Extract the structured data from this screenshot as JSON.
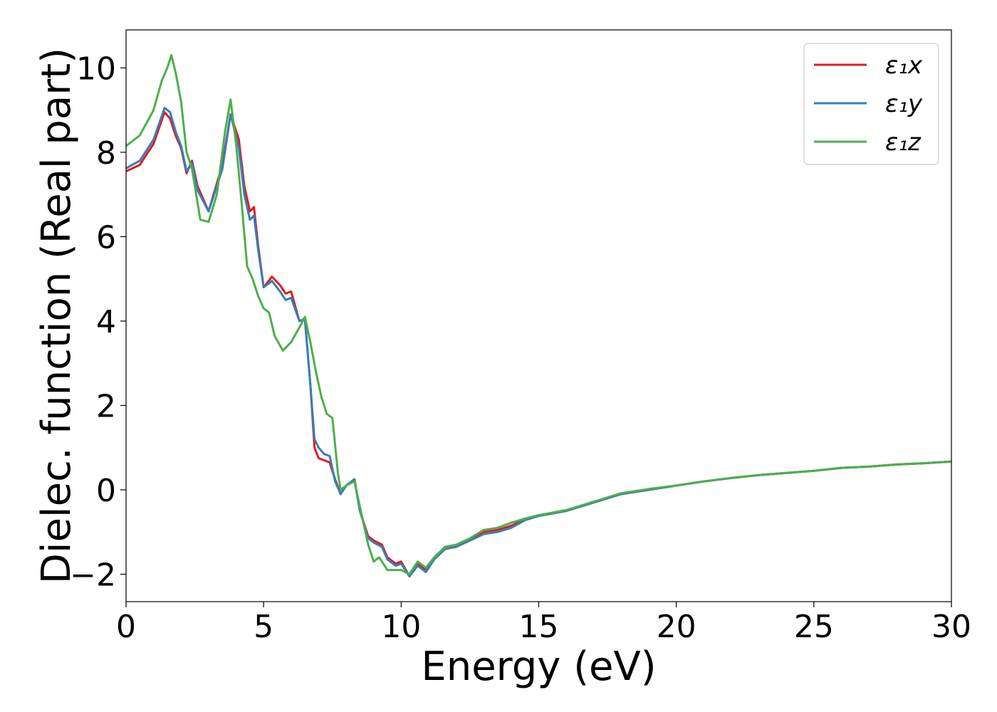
{
  "chart_data": {
    "type": "line",
    "title": "",
    "xlabel": "Energy (eV)",
    "ylabel": "Dielec. function (Real part)",
    "xlim": [
      0,
      30
    ],
    "ylim": [
      -2.65,
      10.9
    ],
    "xticks": [
      0,
      5,
      10,
      15,
      20,
      25,
      30
    ],
    "yticks": [
      -2,
      0,
      2,
      4,
      6,
      8,
      10
    ],
    "ytick_labels": [
      "−2",
      "0",
      "2",
      "4",
      "6",
      "8",
      "10"
    ],
    "grid": false,
    "legend_position": "top-right",
    "series": [
      {
        "name": "ε₁x",
        "color": "#e41a1c",
        "points": [
          [
            0,
            7.55
          ],
          [
            0.5,
            7.7
          ],
          [
            1.0,
            8.2
          ],
          [
            1.4,
            8.95
          ],
          [
            1.6,
            8.8
          ],
          [
            1.8,
            8.4
          ],
          [
            2.0,
            8.1
          ],
          [
            2.2,
            7.5
          ],
          [
            2.4,
            7.8
          ],
          [
            2.6,
            7.2
          ],
          [
            3.0,
            6.6
          ],
          [
            3.5,
            7.7
          ],
          [
            3.8,
            8.9
          ],
          [
            4.1,
            8.3
          ],
          [
            4.3,
            7.2
          ],
          [
            4.5,
            6.6
          ],
          [
            4.65,
            6.7
          ],
          [
            4.8,
            5.8
          ],
          [
            5.0,
            4.8
          ],
          [
            5.3,
            5.05
          ],
          [
            5.6,
            4.85
          ],
          [
            5.8,
            4.65
          ],
          [
            6.0,
            4.7
          ],
          [
            6.3,
            4.0
          ],
          [
            6.5,
            4.05
          ],
          [
            6.7,
            2.5
          ],
          [
            6.85,
            1.0
          ],
          [
            7.0,
            0.75
          ],
          [
            7.2,
            0.7
          ],
          [
            7.4,
            0.65
          ],
          [
            7.6,
            0.25
          ],
          [
            7.8,
            -0.1
          ],
          [
            8.0,
            0.1
          ],
          [
            8.3,
            0.25
          ],
          [
            8.5,
            -0.5
          ],
          [
            8.8,
            -1.1
          ],
          [
            9.0,
            -1.2
          ],
          [
            9.3,
            -1.3
          ],
          [
            9.5,
            -1.6
          ],
          [
            9.8,
            -1.75
          ],
          [
            10.0,
            -1.7
          ],
          [
            10.3,
            -2.05
          ],
          [
            10.6,
            -1.75
          ],
          [
            10.9,
            -1.9
          ],
          [
            11.2,
            -1.65
          ],
          [
            11.6,
            -1.4
          ],
          [
            12.0,
            -1.35
          ],
          [
            12.5,
            -1.2
          ],
          [
            13.0,
            -1.0
          ],
          [
            13.5,
            -0.95
          ],
          [
            14.0,
            -0.85
          ],
          [
            14.5,
            -0.7
          ],
          [
            15.0,
            -0.6
          ],
          [
            16.0,
            -0.5
          ],
          [
            17.0,
            -0.3
          ],
          [
            18.0,
            -0.1
          ],
          [
            19.0,
            0.0
          ],
          [
            20.0,
            0.1
          ],
          [
            21.0,
            0.2
          ],
          [
            22.0,
            0.28
          ],
          [
            23.0,
            0.35
          ],
          [
            24.0,
            0.4
          ],
          [
            25.0,
            0.45
          ],
          [
            26.0,
            0.52
          ],
          [
            27.0,
            0.55
          ],
          [
            28.0,
            0.6
          ],
          [
            29.0,
            0.63
          ],
          [
            30.0,
            0.67
          ]
        ]
      },
      {
        "name": "ε₁y",
        "color": "#377eb8",
        "points": [
          [
            0,
            7.62
          ],
          [
            0.5,
            7.8
          ],
          [
            1.0,
            8.3
          ],
          [
            1.4,
            9.05
          ],
          [
            1.6,
            8.95
          ],
          [
            1.8,
            8.5
          ],
          [
            2.0,
            8.15
          ],
          [
            2.2,
            7.55
          ],
          [
            2.4,
            7.75
          ],
          [
            2.6,
            7.1
          ],
          [
            3.0,
            6.6
          ],
          [
            3.5,
            7.6
          ],
          [
            3.8,
            8.9
          ],
          [
            4.1,
            8.1
          ],
          [
            4.3,
            7.0
          ],
          [
            4.5,
            6.4
          ],
          [
            4.65,
            6.5
          ],
          [
            4.8,
            5.7
          ],
          [
            5.0,
            4.8
          ],
          [
            5.3,
            4.95
          ],
          [
            5.6,
            4.7
          ],
          [
            5.8,
            4.5
          ],
          [
            6.0,
            4.55
          ],
          [
            6.3,
            4.0
          ],
          [
            6.5,
            4.05
          ],
          [
            6.7,
            2.5
          ],
          [
            6.85,
            1.2
          ],
          [
            7.0,
            1.0
          ],
          [
            7.2,
            0.85
          ],
          [
            7.4,
            0.8
          ],
          [
            7.6,
            0.2
          ],
          [
            7.8,
            -0.1
          ],
          [
            8.0,
            0.1
          ],
          [
            8.3,
            0.25
          ],
          [
            8.5,
            -0.5
          ],
          [
            8.8,
            -1.15
          ],
          [
            9.0,
            -1.25
          ],
          [
            9.3,
            -1.35
          ],
          [
            9.5,
            -1.65
          ],
          [
            9.8,
            -1.8
          ],
          [
            10.0,
            -1.75
          ],
          [
            10.3,
            -2.05
          ],
          [
            10.6,
            -1.8
          ],
          [
            10.9,
            -1.95
          ],
          [
            11.2,
            -1.65
          ],
          [
            11.6,
            -1.4
          ],
          [
            12.0,
            -1.35
          ],
          [
            12.5,
            -1.2
          ],
          [
            13.0,
            -1.05
          ],
          [
            13.5,
            -1.0
          ],
          [
            14.0,
            -0.9
          ],
          [
            14.5,
            -0.72
          ],
          [
            15.0,
            -0.62
          ],
          [
            16.0,
            -0.5
          ],
          [
            17.0,
            -0.3
          ],
          [
            18.0,
            -0.1
          ],
          [
            19.0,
            0.0
          ],
          [
            20.0,
            0.1
          ],
          [
            21.0,
            0.2
          ],
          [
            22.0,
            0.28
          ],
          [
            23.0,
            0.35
          ],
          [
            24.0,
            0.4
          ],
          [
            25.0,
            0.45
          ],
          [
            26.0,
            0.52
          ],
          [
            27.0,
            0.55
          ],
          [
            28.0,
            0.6
          ],
          [
            29.0,
            0.63
          ],
          [
            30.0,
            0.67
          ]
        ]
      },
      {
        "name": "ε₁z",
        "color": "#4daf4a",
        "points": [
          [
            0,
            8.15
          ],
          [
            0.5,
            8.4
          ],
          [
            1.0,
            9.0
          ],
          [
            1.3,
            9.7
          ],
          [
            1.5,
            10.0
          ],
          [
            1.65,
            10.3
          ],
          [
            1.8,
            9.9
          ],
          [
            2.0,
            9.2
          ],
          [
            2.2,
            8.0
          ],
          [
            2.4,
            7.6
          ],
          [
            2.7,
            6.4
          ],
          [
            3.0,
            6.35
          ],
          [
            3.3,
            7.0
          ],
          [
            3.6,
            8.5
          ],
          [
            3.8,
            9.25
          ],
          [
            4.0,
            8.2
          ],
          [
            4.2,
            6.8
          ],
          [
            4.4,
            5.3
          ],
          [
            4.6,
            5.0
          ],
          [
            4.8,
            4.6
          ],
          [
            5.0,
            4.3
          ],
          [
            5.2,
            4.2
          ],
          [
            5.4,
            3.65
          ],
          [
            5.7,
            3.3
          ],
          [
            6.0,
            3.5
          ],
          [
            6.3,
            3.85
          ],
          [
            6.5,
            4.1
          ],
          [
            6.7,
            3.5
          ],
          [
            6.9,
            2.8
          ],
          [
            7.1,
            2.2
          ],
          [
            7.3,
            1.8
          ],
          [
            7.5,
            1.7
          ],
          [
            7.7,
            0.4
          ],
          [
            7.8,
            0.0
          ],
          [
            8.0,
            0.1
          ],
          [
            8.3,
            0.2
          ],
          [
            8.5,
            -0.4
          ],
          [
            8.8,
            -1.3
          ],
          [
            9.0,
            -1.7
          ],
          [
            9.2,
            -1.6
          ],
          [
            9.5,
            -1.9
          ],
          [
            10.0,
            -1.9
          ],
          [
            10.3,
            -2.0
          ],
          [
            10.6,
            -1.7
          ],
          [
            10.9,
            -1.85
          ],
          [
            11.2,
            -1.6
          ],
          [
            11.6,
            -1.35
          ],
          [
            12.0,
            -1.3
          ],
          [
            12.5,
            -1.15
          ],
          [
            13.0,
            -0.95
          ],
          [
            13.5,
            -0.9
          ],
          [
            14.0,
            -0.78
          ],
          [
            14.5,
            -0.68
          ],
          [
            15.0,
            -0.6
          ],
          [
            16.0,
            -0.48
          ],
          [
            17.0,
            -0.28
          ],
          [
            18.0,
            -0.08
          ],
          [
            19.0,
            0.02
          ],
          [
            20.0,
            0.1
          ],
          [
            21.0,
            0.2
          ],
          [
            22.0,
            0.28
          ],
          [
            23.0,
            0.35
          ],
          [
            24.0,
            0.4
          ],
          [
            25.0,
            0.45
          ],
          [
            26.0,
            0.52
          ],
          [
            27.0,
            0.55
          ],
          [
            28.0,
            0.6
          ],
          [
            29.0,
            0.63
          ],
          [
            30.0,
            0.67
          ]
        ]
      }
    ]
  }
}
